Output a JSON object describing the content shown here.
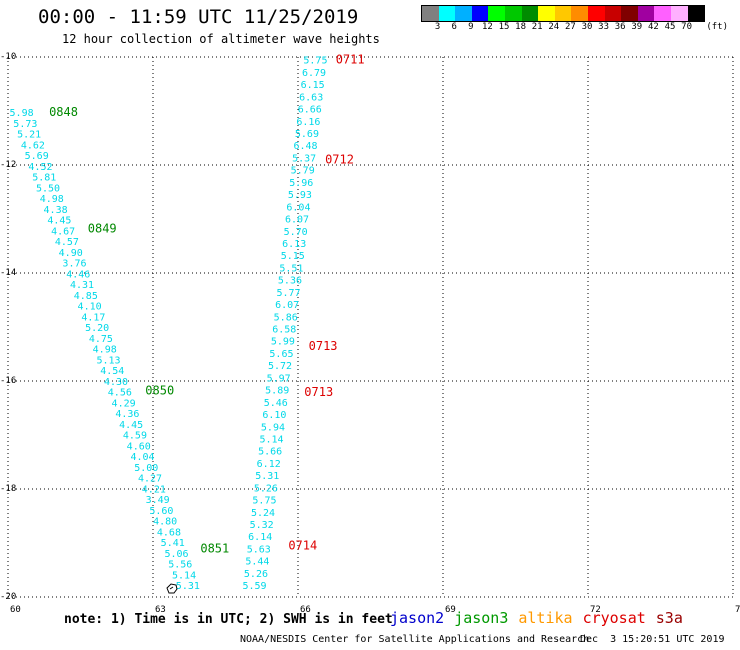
{
  "title": "00:00 - 11:59 UTC 11/25/2019",
  "subtitle": "12 hour collection of altimeter wave heights",
  "legend": {
    "unit": "(ft)",
    "colors": [
      "#808080",
      "#00ffff",
      "#00b0ff",
      "#0000ff",
      "#00ff00",
      "#00c800",
      "#008c00",
      "#ffff00",
      "#ffc800",
      "#ff8c00",
      "#ff0000",
      "#c80000",
      "#800000",
      "#a000a0",
      "#ff60ff",
      "#ffb0ff",
      "#000000"
    ],
    "labels": [
      "3",
      "6",
      "9",
      "12",
      "15",
      "18",
      "21",
      "24",
      "27",
      "30",
      "33",
      "36",
      "39",
      "42",
      "45",
      "70"
    ]
  },
  "axes": {
    "lon_labels": [
      "60",
      "63",
      "66",
      "69",
      "72",
      "75"
    ],
    "lat_labels": [
      "-10",
      "-12",
      "-14",
      "-16",
      "-18",
      "-20"
    ],
    "lon_range": [
      60,
      75
    ],
    "lat_range": [
      -20,
      -10
    ]
  },
  "tracks": [
    {
      "satellite": "jason3",
      "color": "#008800",
      "lon_start": 60.28,
      "lat_start": -11.02,
      "lon_end": 63.72,
      "lat_end": -19.78,
      "heights": [
        "5.98",
        "5.73",
        "5.21",
        "4.62",
        "5.69",
        "4.52",
        "5.81",
        "5.50",
        "4.98",
        "4.38",
        "4.45",
        "4.67",
        "4.57",
        "4.90",
        "3.76",
        "4.46",
        "4.31",
        "4.85",
        "4.10",
        "4.17",
        "5.20",
        "4.75",
        "4.98",
        "5.13",
        "4.54",
        "4.30",
        "4.56",
        "4.29",
        "4.36",
        "4.45",
        "4.59",
        "4.60",
        "4.04",
        "5.00",
        "4.27",
        "4.21",
        "3.49",
        "5.60",
        "4.80",
        "4.68",
        "5.41",
        "5.06",
        "5.56",
        "5.14",
        "5.31"
      ],
      "time_labels": [
        {
          "text": "0848",
          "lon": 60.85,
          "lat": -11.02
        },
        {
          "text": "0849",
          "lon": 61.65,
          "lat": -13.18
        },
        {
          "text": "0850",
          "lon": 62.84,
          "lat": -16.18
        },
        {
          "text": "0851",
          "lon": 63.98,
          "lat": -19.1
        }
      ]
    },
    {
      "satellite": "cryosat",
      "color": "#dd0000",
      "lon_start": 66.36,
      "lat_start": -10.05,
      "lon_end": 65.1,
      "lat_end": -19.78,
      "heights": [
        "5.75",
        "6.79",
        "6.15",
        "6.63",
        "6.66",
        "6.16",
        "5.69",
        "6.48",
        "5.37",
        "5.79",
        "5.96",
        "5.93",
        "6.04",
        "6.07",
        "5.70",
        "6.13",
        "5.15",
        "5.51",
        "5.36",
        "5.77",
        "6.07",
        "5.86",
        "6.58",
        "5.99",
        "5.65",
        "5.72",
        "5.97",
        "5.89",
        "5.46",
        "6.10",
        "5.94",
        "5.14",
        "5.66",
        "6.12",
        "5.31",
        "5.26",
        "5.75",
        "5.24",
        "5.32",
        "6.14",
        "5.63",
        "5.44",
        "5.26",
        "5.59"
      ],
      "time_labels": [
        {
          "text": "0711",
          "lon": 66.78,
          "lat": -10.05
        },
        {
          "text": "0712",
          "lon": 66.56,
          "lat": -11.9
        },
        {
          "text": "0713",
          "lon": 66.22,
          "lat": -15.35
        },
        {
          "text": "0713",
          "lon": 66.13,
          "lat": -16.2
        },
        {
          "text": "0714",
          "lon": 65.8,
          "lat": -19.05
        }
      ]
    }
  ],
  "note": "note: 1) Time is in UTC; 2) SWH is in feet",
  "satellites": [
    {
      "name": "jason2",
      "color": "#0000cc"
    },
    {
      "name": "jason3",
      "color": "#009900"
    },
    {
      "name": "altika",
      "color": "#ff9900"
    },
    {
      "name": "cryosat",
      "color": "#dd0000"
    },
    {
      "name": "s3a",
      "color": "#990000"
    }
  ],
  "credit": "NOAA/NESDIS Center for Satellite Applications and Research",
  "credit_date": "Dec  3 15:20:51 UTC 2019"
}
